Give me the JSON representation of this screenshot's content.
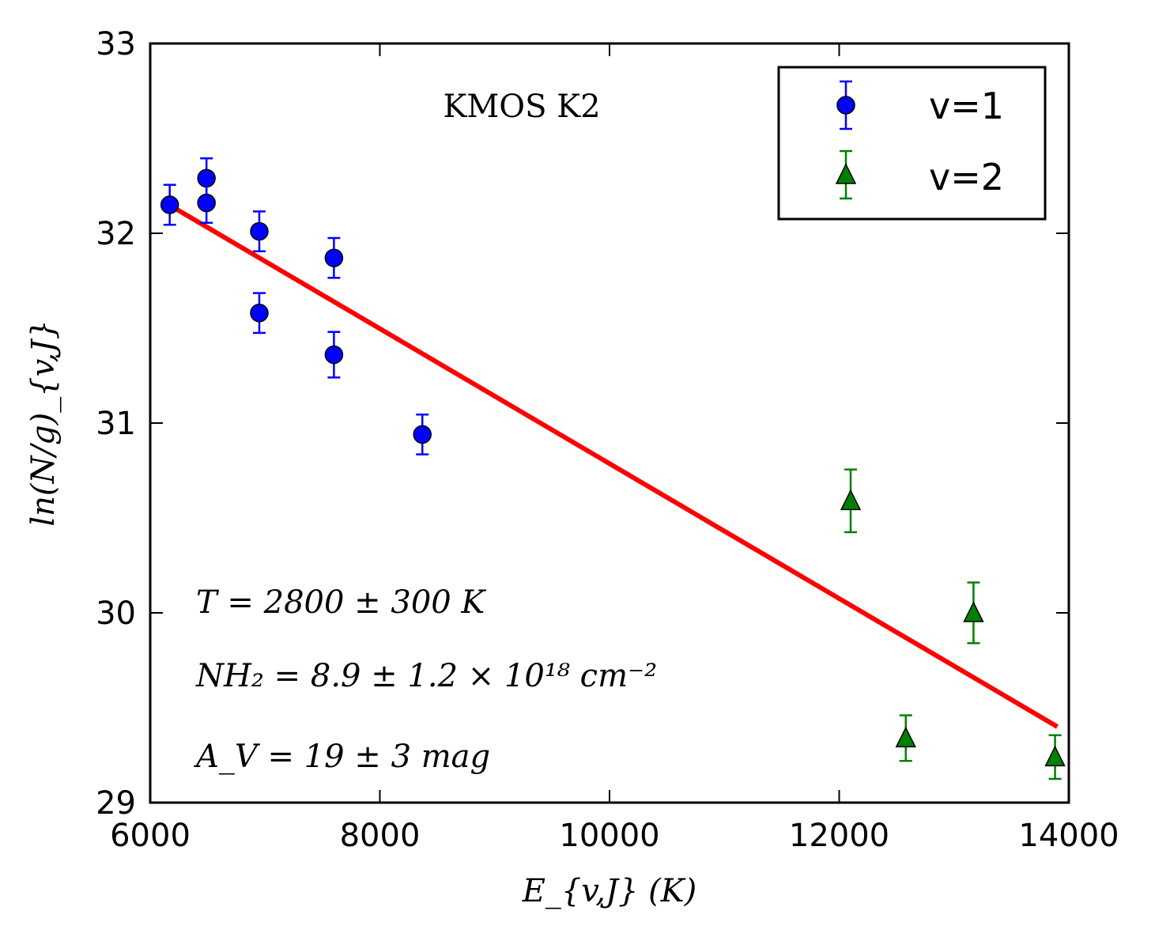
{
  "chart_data": {
    "type": "scatter",
    "title": "KMOS K2",
    "xlabel": "E_{v,J} (K)",
    "ylabel": "ln(N/g)_{v,J}",
    "xlim": [
      6000,
      14000
    ],
    "ylim": [
      29,
      33
    ],
    "x_ticks": [
      "6000",
      "8000",
      "10000",
      "12000",
      "14000"
    ],
    "y_ticks": [
      "29",
      "30",
      "31",
      "32",
      "33"
    ],
    "series": [
      {
        "name": "v=1",
        "marker": "circle",
        "color": "#0000ff",
        "points": [
          {
            "x": 6170,
            "y": 32.15,
            "err": 0.105
          },
          {
            "x": 6490,
            "y": 32.29,
            "err": 0.105
          },
          {
            "x": 6490,
            "y": 32.16,
            "err": 0.105
          },
          {
            "x": 6950,
            "y": 32.01,
            "err": 0.105
          },
          {
            "x": 6950,
            "y": 31.58,
            "err": 0.105
          },
          {
            "x": 7600,
            "y": 31.87,
            "err": 0.105
          },
          {
            "x": 7600,
            "y": 31.36,
            "err": 0.12
          },
          {
            "x": 8370,
            "y": 30.94,
            "err": 0.105
          }
        ]
      },
      {
        "name": "v=2",
        "marker": "triangle",
        "color": "#008000",
        "points": [
          {
            "x": 12100,
            "y": 30.59,
            "err": 0.165
          },
          {
            "x": 12580,
            "y": 29.34,
            "err": 0.12
          },
          {
            "x": 13170,
            "y": 30.0,
            "err": 0.16
          },
          {
            "x": 13880,
            "y": 29.24,
            "err": 0.115
          }
        ]
      }
    ],
    "fit_line": {
      "name": "fit",
      "color": "#ff0000",
      "x": [
        6220,
        13900
      ],
      "y": [
        32.13,
        29.4
      ]
    },
    "annotations": {
      "temperature": "T = 2800 ± 300 K",
      "column_density": "NH₂ = 8.9 ± 1.2 × 10¹⁸ cm⁻²",
      "extinction": "A_V = 19 ± 3 mag"
    },
    "legend_position": "top-right"
  }
}
